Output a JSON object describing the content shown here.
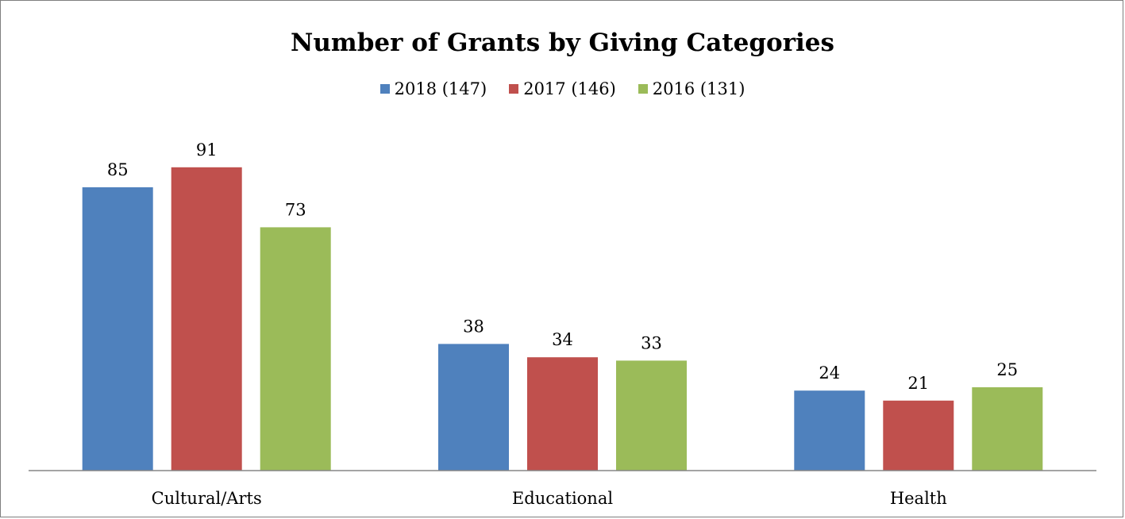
{
  "chart_data": {
    "type": "bar",
    "title": "Number of Grants by Giving Categories",
    "xlabel": "",
    "ylabel": "",
    "categories": [
      "Cultural/Arts",
      "Educational",
      "Health"
    ],
    "series": [
      {
        "name": "2018 (147)",
        "color": "#4f81bd",
        "values": [
          85,
          38,
          24
        ]
      },
      {
        "name": "2017 (146)",
        "color": "#c0504d",
        "values": [
          91,
          34,
          21
        ]
      },
      {
        "name": "2016 (131)",
        "color": "#9bbb59",
        "values": [
          73,
          33,
          25
        ]
      }
    ],
    "ylim": [
      0,
      105
    ],
    "grid": false,
    "legend_position": "top"
  }
}
